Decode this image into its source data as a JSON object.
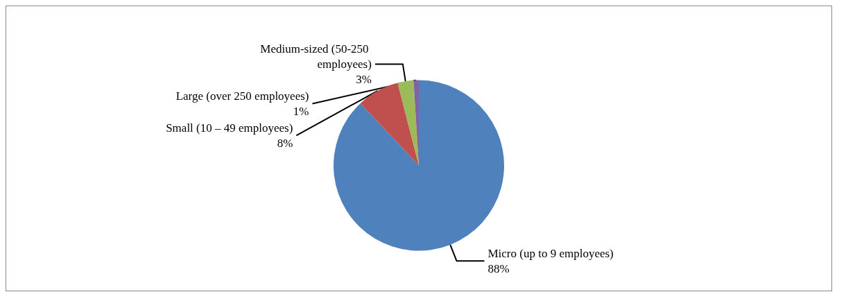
{
  "chart_data": {
    "type": "pie",
    "categories": [
      "Micro (up to 9 employees)",
      "Small (10 – 49 employees)",
      "Medium-sized (50-250 employees)",
      "Large (over 250 employees)"
    ],
    "values": [
      88,
      8,
      3,
      1
    ],
    "value_labels": [
      "88%",
      "8%",
      "3%",
      "1%"
    ],
    "colors": [
      "#4f81bd",
      "#c0504d",
      "#9bbb59",
      "#8064a2"
    ],
    "legend": false
  }
}
